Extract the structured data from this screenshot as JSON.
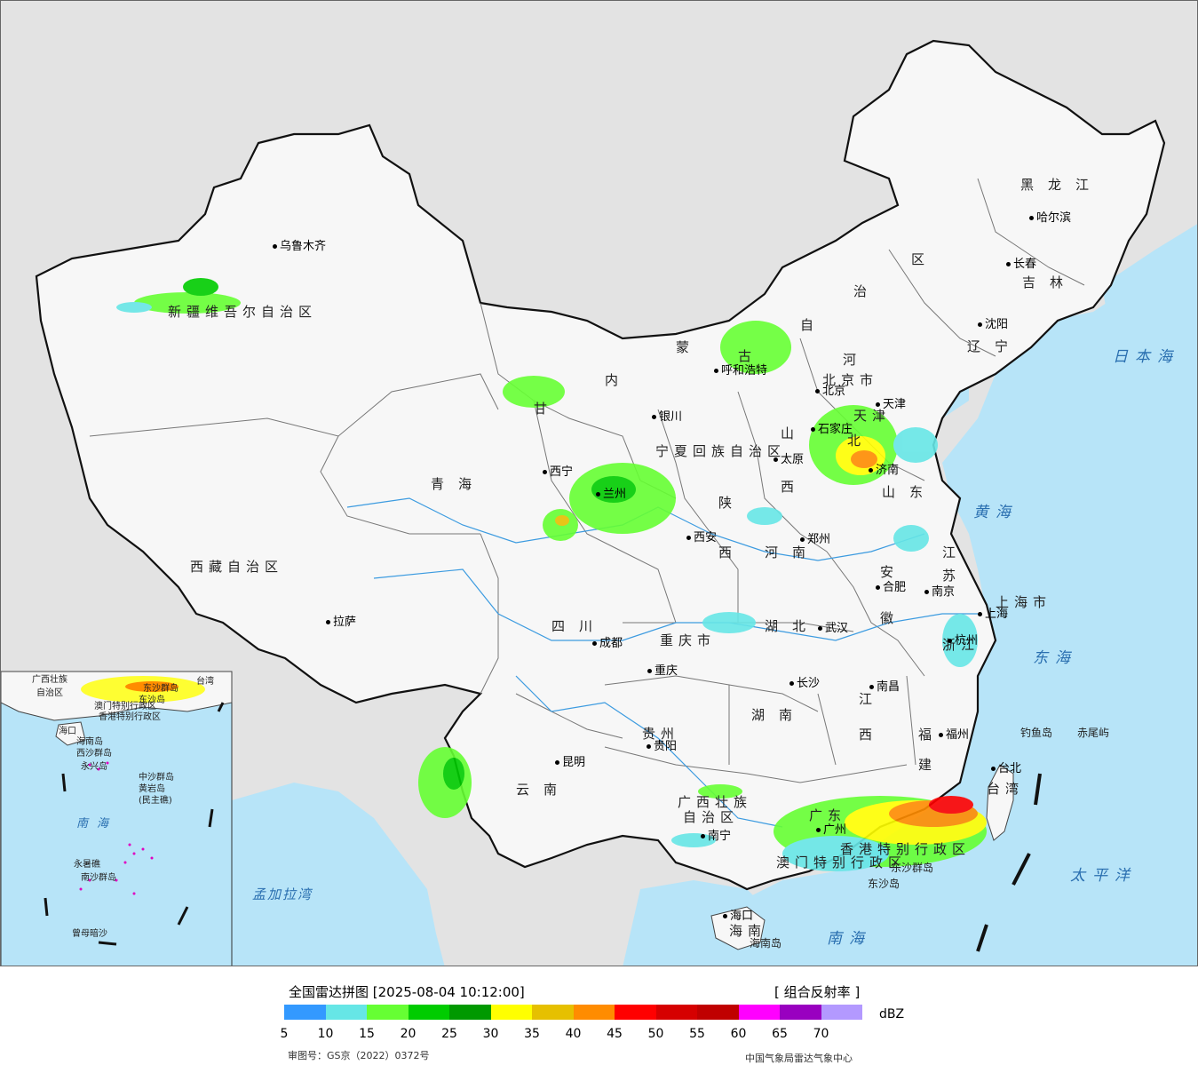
{
  "map": {
    "provinces": [
      {
        "name": "新疆维吾尔自治区",
        "cls": "prov prov-sm"
      },
      {
        "name": "西藏自治区",
        "cls": "prov prov-sm"
      },
      {
        "name": "青海",
        "cls": "prov"
      },
      {
        "name": "甘",
        "cls": "prov"
      },
      {
        "name": "内",
        "cls": "prov"
      },
      {
        "name": "蒙",
        "cls": "prov"
      },
      {
        "name": "古",
        "cls": "prov"
      },
      {
        "name": "自",
        "cls": "prov"
      },
      {
        "name": "治",
        "cls": "prov"
      },
      {
        "name": "区",
        "cls": "prov"
      },
      {
        "name": "黑龙江",
        "cls": "prov"
      },
      {
        "name": "吉林",
        "cls": "prov"
      },
      {
        "name": "辽宁",
        "cls": "prov"
      },
      {
        "name": "河",
        "cls": "prov"
      },
      {
        "name": "北",
        "cls": "prov"
      },
      {
        "name": "山",
        "cls": "prov"
      },
      {
        "name": "西",
        "cls": "prov"
      },
      {
        "name": "山东",
        "cls": "prov"
      },
      {
        "name": "陕",
        "cls": "prov"
      },
      {
        "name": "西",
        "cls": "prov"
      },
      {
        "name": "河南",
        "cls": "prov"
      },
      {
        "name": "江",
        "cls": "prov"
      },
      {
        "name": "苏",
        "cls": "prov"
      },
      {
        "name": "安",
        "cls": "prov"
      },
      {
        "name": "徽",
        "cls": "prov"
      },
      {
        "name": "上海市",
        "cls": "prov prov-sm"
      },
      {
        "name": "浙江",
        "cls": "prov prov-sm"
      },
      {
        "name": "四川",
        "cls": "prov"
      },
      {
        "name": "重庆市",
        "cls": "prov prov-sm"
      },
      {
        "name": "湖北",
        "cls": "prov"
      },
      {
        "name": "湖南",
        "cls": "prov"
      },
      {
        "name": "江",
        "cls": "prov"
      },
      {
        "name": "西",
        "cls": "prov"
      },
      {
        "name": "福",
        "cls": "prov"
      },
      {
        "name": "建",
        "cls": "prov"
      },
      {
        "name": "贵州",
        "cls": "prov prov-sm"
      },
      {
        "name": "云南",
        "cls": "prov"
      },
      {
        "name": "广西壮族",
        "cls": "prov prov-sm"
      },
      {
        "name": "自治区",
        "cls": "prov prov-sm"
      },
      {
        "name": "广东",
        "cls": "prov prov-sm"
      },
      {
        "name": "台湾",
        "cls": "prov prov-sm"
      },
      {
        "name": "海南",
        "cls": "prov prov-sm"
      },
      {
        "name": "宁夏回族自治区",
        "cls": "prov prov-sm"
      },
      {
        "name": "天津",
        "cls": "prov prov-sm"
      },
      {
        "name": "北京市",
        "cls": "prov prov-sm"
      },
      {
        "name": "香港特别行政区",
        "cls": "prov prov-sm"
      },
      {
        "name": "澳门特别行政区",
        "cls": "prov prov-sm"
      }
    ],
    "cities": [
      "乌鲁木齐",
      "拉萨",
      "西宁",
      "兰州",
      "银川",
      "呼和浩特",
      "北京",
      "天津",
      "石家庄",
      "太原",
      "济南",
      "西安",
      "郑州",
      "合肥",
      "南京",
      "上海",
      "杭州",
      "武汉",
      "长沙",
      "南昌",
      "福州",
      "台北",
      "广州",
      "南宁",
      "海口",
      "成都",
      "重庆",
      "贵阳",
      "昆明",
      "哈尔滨",
      "长春",
      "沈阳"
    ],
    "seas": [
      "日本海",
      "黄海",
      "东海",
      "太平洋",
      "南海",
      "孟加拉湾"
    ],
    "islands": [
      "钓鱼岛",
      "赤尾屿",
      "东沙群岛",
      "东沙岛",
      "海南岛"
    ],
    "inset": {
      "labels": [
        "广西壮族",
        "自治区",
        "海口",
        "海南岛",
        "西沙群岛",
        "永兴岛",
        "中沙群岛",
        "黄岩岛",
        "(民主礁)",
        "永暑礁",
        "南沙群岛",
        "曾母暗沙",
        "东沙群岛",
        "东沙岛",
        "澳门特别行政区",
        "香港特别行政区",
        "台湾"
      ],
      "sea": "南海"
    }
  },
  "legend": {
    "title": "全国雷达拼图 [2025-08-04 10:12:00]",
    "product": "[ 组合反射率 ]",
    "unit": "dBZ",
    "colors": [
      "#3399ff",
      "#66e6e6",
      "#66ff33",
      "#00cc00",
      "#009900",
      "#ffff00",
      "#e6c000",
      "#ff8c00",
      "#ff0000",
      "#d60000",
      "#c00000",
      "#ff00ff",
      "#9900c0",
      "#b399ff"
    ],
    "ticks": [
      "5",
      "10",
      "15",
      "20",
      "25",
      "30",
      "35",
      "40",
      "45",
      "50",
      "55",
      "60",
      "65",
      "70"
    ],
    "approval": "审图号：GS京（2022）0372号",
    "producer": "中国气象局雷达气象中心"
  }
}
